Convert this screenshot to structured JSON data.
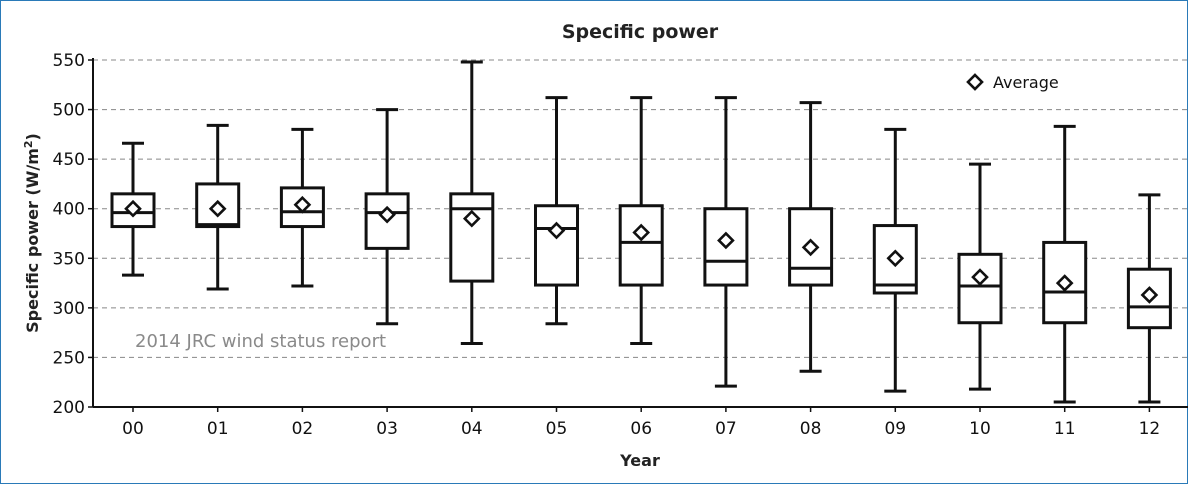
{
  "chart_data": {
    "type": "boxplot",
    "title": "Specific power",
    "xlabel": "Year",
    "ylabel_main": "Specific power (W/m",
    "ylabel_sup": "2",
    "ylabel_close": ")",
    "ylim": [
      200,
      550
    ],
    "yticks": [
      200,
      250,
      300,
      350,
      400,
      450,
      500,
      550
    ],
    "grid": "horizontal dashed",
    "legend": {
      "label": "Average",
      "marker": "diamond",
      "placement": "top-right"
    },
    "annotation": "2014 JRC wind status report",
    "categories": [
      "00",
      "01",
      "02",
      "03",
      "04",
      "05",
      "06",
      "07",
      "08",
      "09",
      "10",
      "11",
      "12"
    ],
    "whisker_low": [
      333,
      319,
      322,
      284,
      264,
      284,
      264,
      221,
      236,
      216,
      218,
      205,
      205
    ],
    "q1": [
      382,
      382,
      382,
      360,
      327,
      323,
      323,
      323,
      323,
      315,
      285,
      285,
      280
    ],
    "median": [
      396,
      384,
      397,
      396,
      400,
      380,
      366,
      347,
      340,
      323,
      322,
      316,
      301
    ],
    "q3": [
      415,
      425,
      421,
      415,
      415,
      403,
      403,
      400,
      400,
      383,
      354,
      366,
      339
    ],
    "whisker_high": [
      466,
      484,
      480,
      500,
      548,
      512,
      512,
      512,
      507,
      480,
      445,
      483,
      414
    ],
    "average": [
      400,
      400,
      404,
      394,
      390,
      378,
      376,
      368,
      361,
      350,
      331,
      325,
      313
    ]
  }
}
